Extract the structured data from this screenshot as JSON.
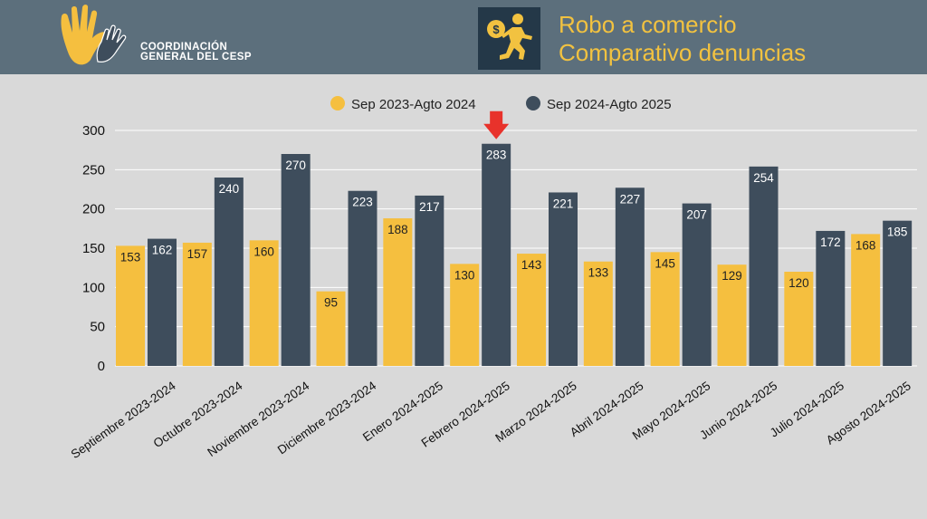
{
  "header": {
    "org_line1": "COORDINACIÓN",
    "org_line2": "GENERAL DEL CESP",
    "title_line1": "Robo a comercio",
    "title_line2": "Comparativo denuncias",
    "icon": "running-thief-money-bag-icon",
    "logo_icon": "hands-logo-icon"
  },
  "colors": {
    "header_bg": "#5c6f7c",
    "series1": "#f5bf3f",
    "series2": "#3e4d5c",
    "title": "#f2c240",
    "arrow": "#e8322b",
    "background": "#d9d9d9"
  },
  "chart_data": {
    "type": "bar",
    "categories": [
      "Septiembre 2023-2024",
      "Octubre 2023-2024",
      "Noviembre 2023-2024",
      "Diciembre 2023-2024",
      "Enero 2024-2025",
      "Febrero 2024-2025",
      "Marzo 2024-2025",
      "Abril 2024-2025",
      "Mayo 2024-2025",
      "Junio 2024-2025",
      "Julio 2024-2025",
      "Agosto 2024-2025"
    ],
    "series": [
      {
        "name": "Sep 2023-Agto 2024",
        "values": [
          153,
          157,
          160,
          95,
          188,
          130,
          143,
          133,
          145,
          129,
          120,
          168
        ]
      },
      {
        "name": "Sep 2024-Agto 2025",
        "values": [
          162,
          240,
          270,
          223,
          217,
          283,
          221,
          227,
          207,
          254,
          172,
          185
        ]
      }
    ],
    "ylim": [
      0,
      300
    ],
    "yticks": [
      0,
      50,
      100,
      150,
      200,
      250,
      300
    ],
    "grid": true,
    "legend_position": "top-center",
    "highlight": {
      "category_index": 5,
      "series_index": 1,
      "marker": "down-arrow"
    }
  }
}
